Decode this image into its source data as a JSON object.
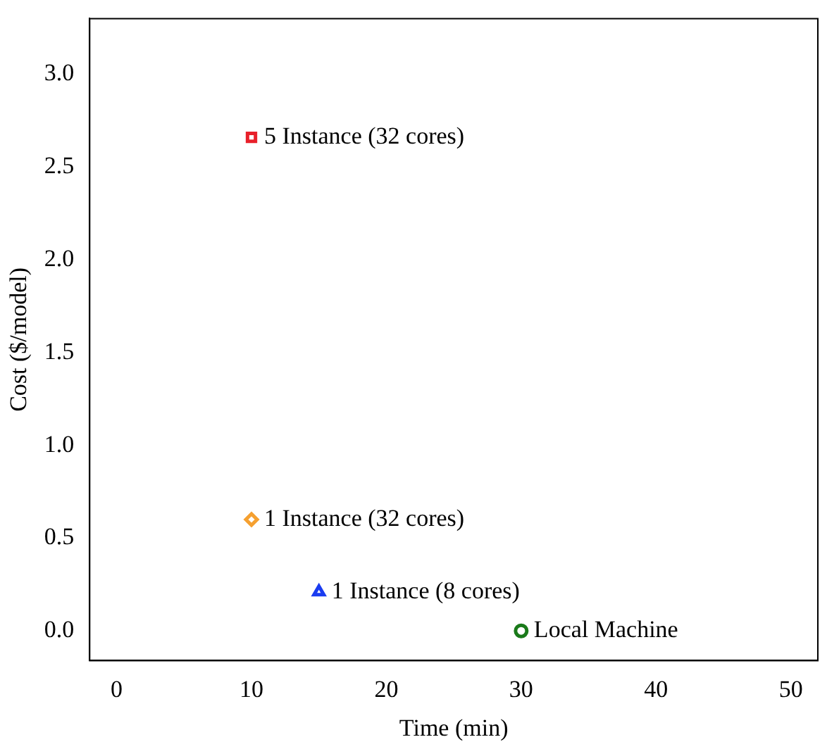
{
  "chart_data": {
    "type": "scatter",
    "xlabel": "Time (min)",
    "ylabel": "Cost ($/model)",
    "xlim": [
      -2,
      52
    ],
    "ylim": [
      -0.16,
      3.3
    ],
    "xticks": [
      0,
      10,
      20,
      30,
      40,
      50
    ],
    "yticks": [
      {
        "value": 0,
        "label": "0.0"
      },
      0.5,
      {
        "value": 1,
        "label": "1.0"
      },
      1.5,
      {
        "value": 2,
        "label": "2.0"
      },
      2.5,
      {
        "value": 3,
        "label": "3.0"
      }
    ],
    "grid": false,
    "legend": false,
    "series": [
      {
        "name": "5 Instance (32 cores)",
        "color": "#e8202a",
        "marker": "square",
        "x": [
          10
        ],
        "values": [
          2.66
        ]
      },
      {
        "name": "1 Instance (32 cores)",
        "color": "#f5a030",
        "marker": "diamond",
        "x": [
          10
        ],
        "values": [
          0.6
        ]
      },
      {
        "name": "1 Instance (8 cores)",
        "color": "#1a3cf0",
        "marker": "triangle",
        "x": [
          15
        ],
        "values": [
          0.21
        ]
      },
      {
        "name": "Local Machine",
        "color": "#1a7a1a",
        "marker": "circle",
        "x": [
          30
        ],
        "values": [
          0
        ]
      }
    ]
  }
}
